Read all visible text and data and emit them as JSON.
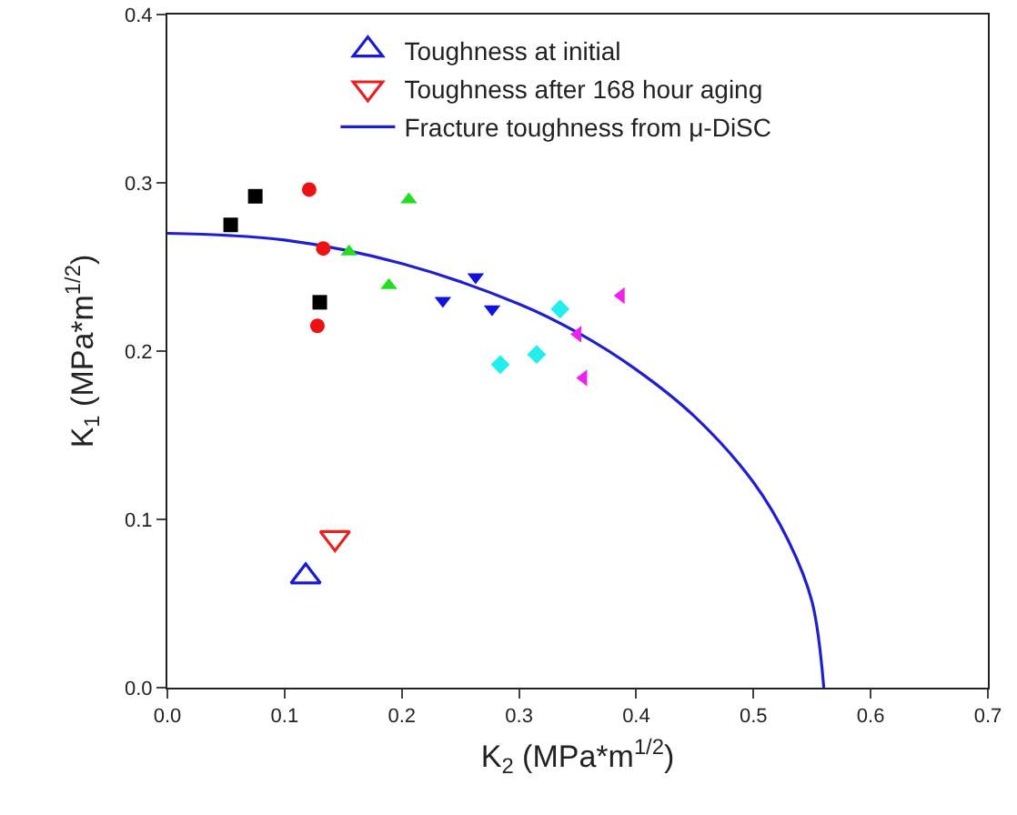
{
  "chart_data": {
    "type": "scatter",
    "xlabel": "K$_{2}$ (MPa*m$^{1/2}$)",
    "ylabel": "K$_{1}$ (MPa*m$^{1/2}$)",
    "xlim": [
      0,
      0.7
    ],
    "ylim": [
      0,
      0.4
    ],
    "xticks": [
      {
        "value": 0,
        "label": "0.0"
      },
      {
        "value": 0.1,
        "label": "0.1"
      },
      {
        "value": 0.2,
        "label": "0.2"
      },
      {
        "value": 0.3,
        "label": "0.3"
      },
      {
        "value": 0.4,
        "label": "0.4"
      },
      {
        "value": 0.5,
        "label": "0.5"
      },
      {
        "value": 0.6,
        "label": "0.6"
      },
      {
        "value": 0.7,
        "label": "0.7"
      }
    ],
    "yticks": [
      {
        "value": 0,
        "label": "0.0"
      },
      {
        "value": 0.1,
        "label": "0.1"
      },
      {
        "value": 0.2,
        "label": "0.2"
      },
      {
        "value": 0.3,
        "label": "0.3"
      },
      {
        "value": 0.4,
        "label": "0.4"
      }
    ],
    "grid": false,
    "legend": "top",
    "series": [
      {
        "name": "Toughness at initial",
        "color": "#1a1ad6",
        "marker": "triangle-open",
        "x": [
          0.118
        ],
        "values": [
          0.066
        ]
      },
      {
        "name": "Toughness after 168 hour aging",
        "color": "#e82020",
        "marker": "triangle-down-open",
        "x": [
          0.143
        ],
        "values": [
          0.089
        ]
      },
      {
        "name": "Fracture toughness from μ-DiSC",
        "type": "line",
        "color": "#1f1fd0",
        "marker": "none",
        "x": [
          0,
          0.1,
          0.2,
          0.3,
          0.35,
          0.4,
          0.45,
          0.5,
          0.53,
          0.55,
          0.56
        ],
        "values": [
          0.27,
          0.266,
          0.252,
          0.228,
          0.211,
          0.189,
          0.161,
          0.122,
          0.087,
          0.051,
          0
        ]
      },
      {
        "color": "#000000",
        "marker": "square",
        "x": [
          0.054,
          0.075,
          0.13
        ],
        "values": [
          0.275,
          0.292,
          0.229
        ]
      },
      {
        "color": "#ee1111",
        "marker": "circle",
        "x": [
          0.121,
          0.133,
          0.128
        ],
        "values": [
          0.296,
          0.261,
          0.215
        ]
      },
      {
        "color": "#22dd22",
        "marker": "triangle",
        "x": [
          0.206,
          0.155,
          0.189
        ],
        "values": [
          0.29,
          0.259,
          0.239
        ]
      },
      {
        "color": "#1111dd",
        "marker": "triangle-down",
        "x": [
          0.263,
          0.235,
          0.277
        ],
        "values": [
          0.244,
          0.23,
          0.225
        ]
      },
      {
        "color": "#22eeee",
        "marker": "diamond",
        "x": [
          0.335,
          0.284,
          0.315
        ],
        "values": [
          0.225,
          0.192,
          0.198
        ]
      },
      {
        "color": "#ee22ee",
        "marker": "triangle-left",
        "x": [
          0.387,
          0.35,
          0.355
        ],
        "values": [
          0.233,
          0.21,
          0.184
        ]
      }
    ]
  }
}
